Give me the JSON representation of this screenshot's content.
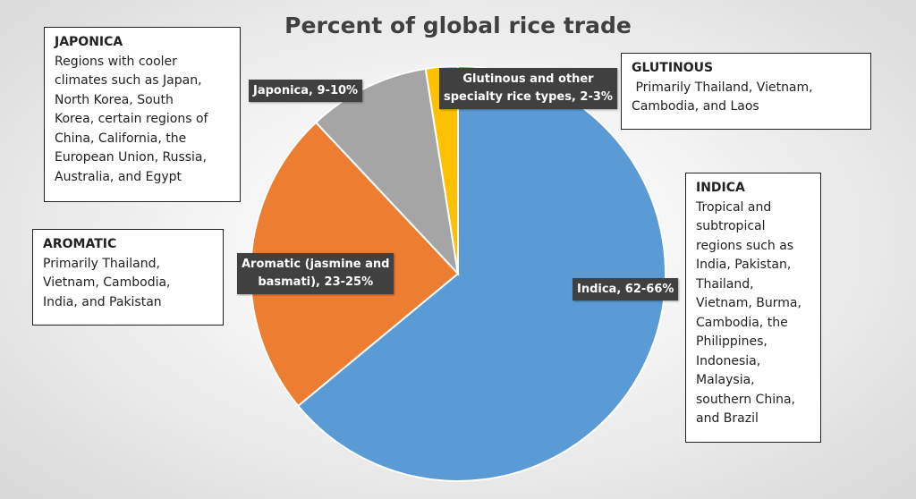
{
  "chart_data": {
    "type": "pie",
    "title": "Percent of global rice trade",
    "start_angle_deg": 0,
    "direction": "clockwise",
    "slices": [
      {
        "name": "Indica",
        "label": "Indica, 62-66%",
        "range": "62-66%",
        "value": 64,
        "color": "#5b9bd5"
      },
      {
        "name": "Aromatic",
        "label": "Aromatic (jasmine and basmati), 23-25%",
        "range": "23-25%",
        "value": 24,
        "color": "#ed7d31"
      },
      {
        "name": "Japonica",
        "label": "Japonica, 9-10%",
        "range": "9-10%",
        "value": 9.5,
        "color": "#a5a5a5"
      },
      {
        "name": "Glutinous",
        "label": "Glutinous and other specialty rice types, 2-3%",
        "range": "2-3%",
        "value": 2.5,
        "color": "#ffc000"
      }
    ]
  },
  "labels": {
    "indica": "Indica, 62-66%",
    "aromatic_line1": "Aromatic (jasmine and",
    "aromatic_line2": "basmati), 23-25%",
    "japonica": "Japonica, 9-10%",
    "glutinous_line1": "Glutinous and other",
    "glutinous_line2": "specialty rice types, 2-3%"
  },
  "boxes": {
    "japonica": {
      "title": "JAPONICA",
      "lines": [
        "Regions with cooler",
        "climates such as Japan,",
        "North Korea, South",
        "Korea, certain regions of",
        "China, California, the",
        "European Union, Russia,",
        "Australia, and Egypt"
      ]
    },
    "aromatic": {
      "title": "AROMATIC",
      "lines": [
        "Primarily Thailand,",
        "Vietnam, Cambodia,",
        "India, and Pakistan"
      ]
    },
    "glutinous": {
      "title": "GLUTINOUS",
      "lines": [
        " Primarily Thailand, Vietnam,",
        "Cambodia, and Laos"
      ]
    },
    "indica": {
      "title": "INDICA",
      "lines": [
        "Tropical and",
        "subtropical",
        "regions such as",
        "India, Pakistan,",
        "Thailand,",
        "Vietnam, Burma,",
        "Cambodia, the",
        "Philippines,",
        "Indonesia,",
        "Malaysia,",
        "southern China,",
        "and Brazil"
      ]
    }
  }
}
